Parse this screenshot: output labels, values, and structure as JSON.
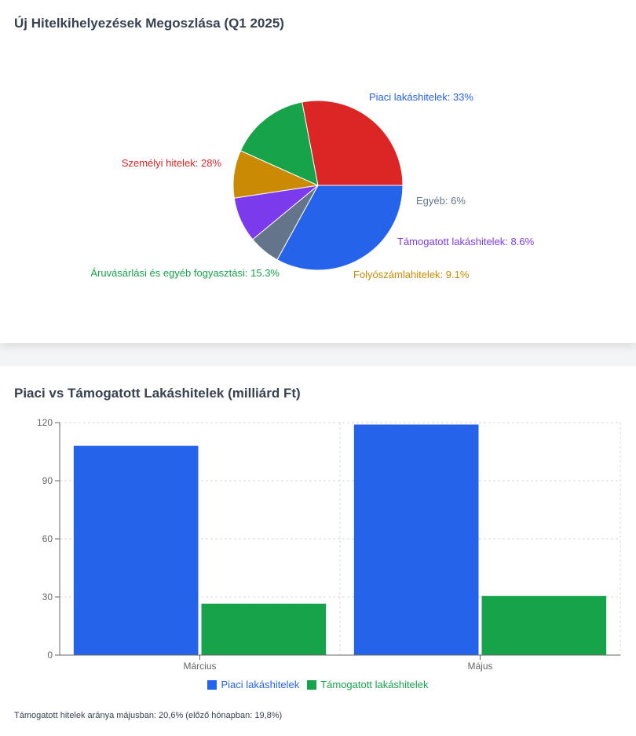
{
  "chart_data": [
    {
      "type": "pie",
      "title": "Új Hitelkihelyezések Megoszlása (Q1 2025)",
      "slices": [
        {
          "name": "Piaci lakáshitelek",
          "value": 33,
          "color": "#2563eb",
          "label": "Piaci lakáshitelek: 33%"
        },
        {
          "name": "Egyéb",
          "value": 6,
          "color": "#64748b",
          "label": "Egyéb: 6%"
        },
        {
          "name": "Támogatott lakáshitelek",
          "value": 8.6,
          "color": "#7c3aed",
          "label": "Támogatott lakáshitelek: 8.6%"
        },
        {
          "name": "Folyószámlahitelek",
          "value": 9.1,
          "color": "#ca8a04",
          "label": "Folyószámlahitelek: 9.1%"
        },
        {
          "name": "Áruvásárlási és egyéb fogyasztási",
          "value": 15.3,
          "color": "#16a34a",
          "label": "Áruvásárlási és egyéb fogyasztási: 15.3%"
        },
        {
          "name": "Személyi hitelek",
          "value": 28,
          "color": "#dc2626",
          "label": "Személyi hitelek: 28%"
        }
      ]
    },
    {
      "type": "bar",
      "title": "Piaci vs Támogatott Lakáshitelek (milliárd Ft)",
      "categories": [
        "Március",
        "Május"
      ],
      "series": [
        {
          "name": "Piaci lakáshitelek",
          "values": [
            108,
            119
          ],
          "color": "#2563eb"
        },
        {
          "name": "Támogatott lakáshitelek",
          "values": [
            26.5,
            30.5
          ],
          "color": "#16a34a"
        }
      ],
      "ylim": [
        0,
        120
      ],
      "yticks": [
        0,
        30,
        60,
        90,
        120
      ],
      "grid": true,
      "legend": "bottom"
    }
  ],
  "footnote": "Támogatott hitelek aránya májusban: 20,6% (előző hónapban: 19,8%)"
}
